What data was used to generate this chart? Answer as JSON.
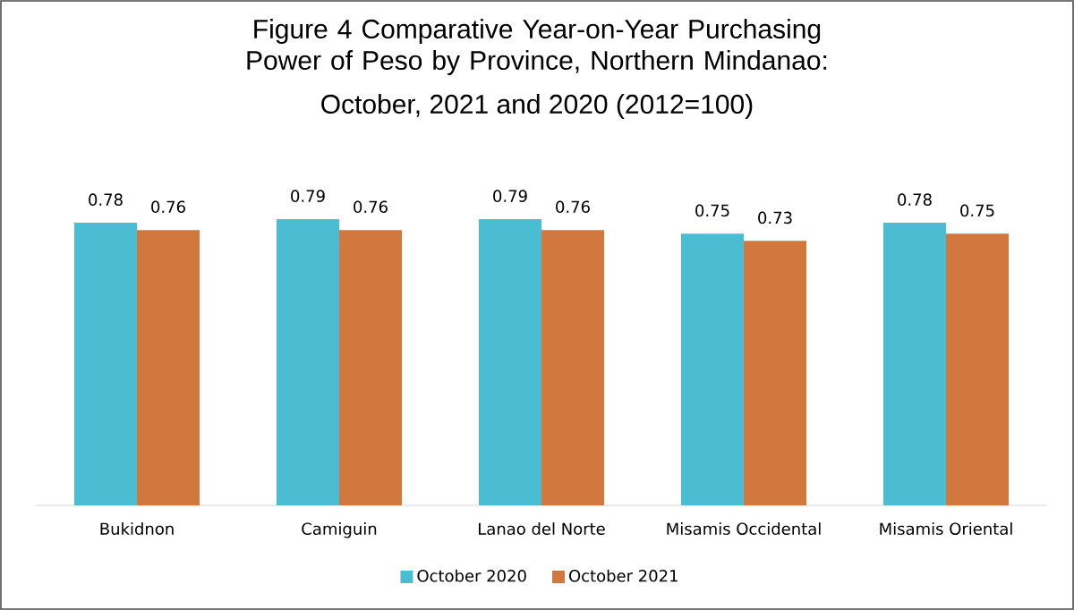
{
  "chart_data": {
    "type": "bar",
    "title": "Figure 4 Comparative Year-on-Year Purchasing Power of Peso by Province, Northern Mindanao:",
    "subtitle": "October, 2021 and 2020 (2012=100)",
    "categories": [
      "Bukidnon",
      "Camiguin",
      "Lanao del Norte",
      "Misamis Occidental",
      "Misamis Oriental"
    ],
    "series": [
      {
        "name": "October 2020",
        "color": "#4bbdd3",
        "values": [
          0.78,
          0.79,
          0.79,
          0.75,
          0.78
        ]
      },
      {
        "name": "October 2021",
        "color": "#d2783f",
        "values": [
          0.76,
          0.76,
          0.76,
          0.73,
          0.75
        ]
      }
    ],
    "data_labels": true,
    "legend": "bottom"
  }
}
